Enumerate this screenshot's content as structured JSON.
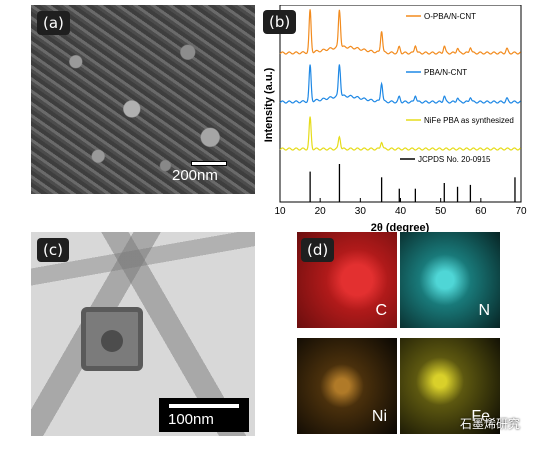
{
  "panels": {
    "a": {
      "label": "(a)",
      "scale_bar": "200nm"
    },
    "b": {
      "label": "(b)"
    },
    "c": {
      "label": "(c)",
      "scale_bar": "100nm"
    },
    "d": {
      "label": "(d)",
      "maps": [
        "C",
        "N",
        "Ni",
        "Fe"
      ]
    }
  },
  "colors": {
    "O-PBA/N-CNT": "#f28b1e",
    "PBA/N-CNT": "#1e88e5",
    "NiFe PBA as synthesized": "#e6dc1a",
    "JCPDS": "#000000",
    "C_map": "#c81d1d",
    "N_map": "#1aa6a6",
    "Ni_map": "#a06a1c",
    "Fe_map": "#b8b01a"
  },
  "watermark": "石墨烯研究",
  "chart_data": {
    "type": "line",
    "xlabel": "2θ (degree)",
    "ylabel": "Intensity (a.u.)",
    "xlim": [
      10,
      70
    ],
    "xticks": [
      10,
      20,
      30,
      40,
      50,
      60,
      70
    ],
    "yticks_shown": false,
    "series": [
      {
        "name": "O-PBA/N-CNT",
        "peaks": [
          17.5,
          24.8,
          35.3,
          39.7,
          43.7,
          50.9,
          54.2,
          57.4,
          66.5
        ]
      },
      {
        "name": "PBA/N-CNT",
        "peaks": [
          17.5,
          24.8,
          35.3,
          39.7,
          43.7,
          50.9,
          54.2,
          57.4,
          66.5
        ]
      },
      {
        "name": "NiFe PBA as synthesized",
        "peaks": [
          17.5,
          24.8,
          35.3
        ]
      },
      {
        "name": "JCPDS No. 20-0915",
        "sticks": [
          {
            "x": 17.5,
            "h": 0.8
          },
          {
            "x": 24.8,
            "h": 1.0
          },
          {
            "x": 35.3,
            "h": 0.65
          },
          {
            "x": 39.7,
            "h": 0.35
          },
          {
            "x": 43.7,
            "h": 0.35
          },
          {
            "x": 50.9,
            "h": 0.5
          },
          {
            "x": 54.2,
            "h": 0.4
          },
          {
            "x": 57.4,
            "h": 0.45
          },
          {
            "x": 68.5,
            "h": 0.65
          }
        ]
      }
    ]
  }
}
